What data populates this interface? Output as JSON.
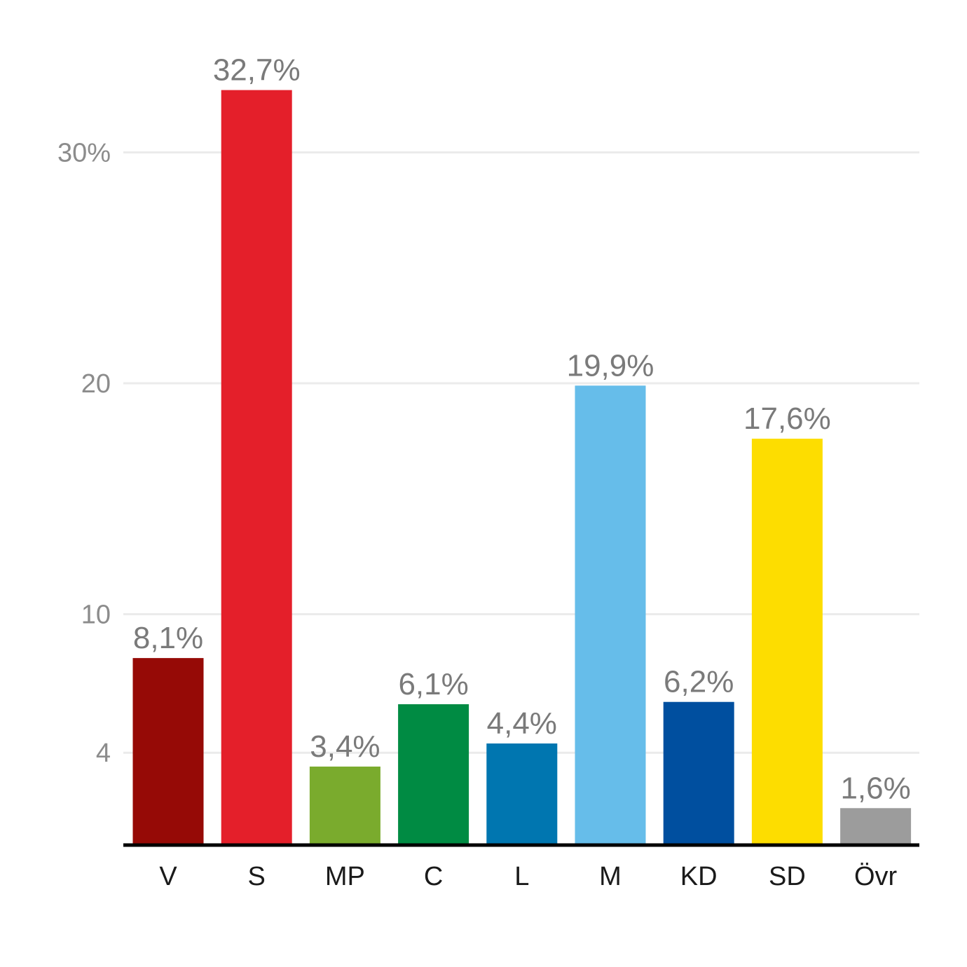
{
  "chart_data": {
    "type": "bar",
    "categories": [
      "V",
      "S",
      "MP",
      "C",
      "L",
      "M",
      "KD",
      "SD",
      "Övr"
    ],
    "values": [
      8.1,
      32.7,
      3.4,
      6.1,
      4.4,
      19.9,
      6.2,
      17.6,
      1.6
    ],
    "value_labels": [
      "8,1%",
      "32,7%",
      "3,4%",
      "6,1%",
      "4,4%",
      "19,9%",
      "6,2%",
      "17,6%",
      "1,6%"
    ],
    "colors": [
      "#960a06",
      "#e41f2a",
      "#7aab2d",
      "#008b43",
      "#0076b0",
      "#66bdea",
      "#004f9f",
      "#fddd00",
      "#9c9c9c"
    ],
    "y_ticks": [
      4,
      10,
      20,
      30
    ],
    "y_tick_labels": [
      "4",
      "10",
      "20",
      "30%"
    ],
    "ylim": [
      0,
      33.5
    ],
    "grid": true
  }
}
